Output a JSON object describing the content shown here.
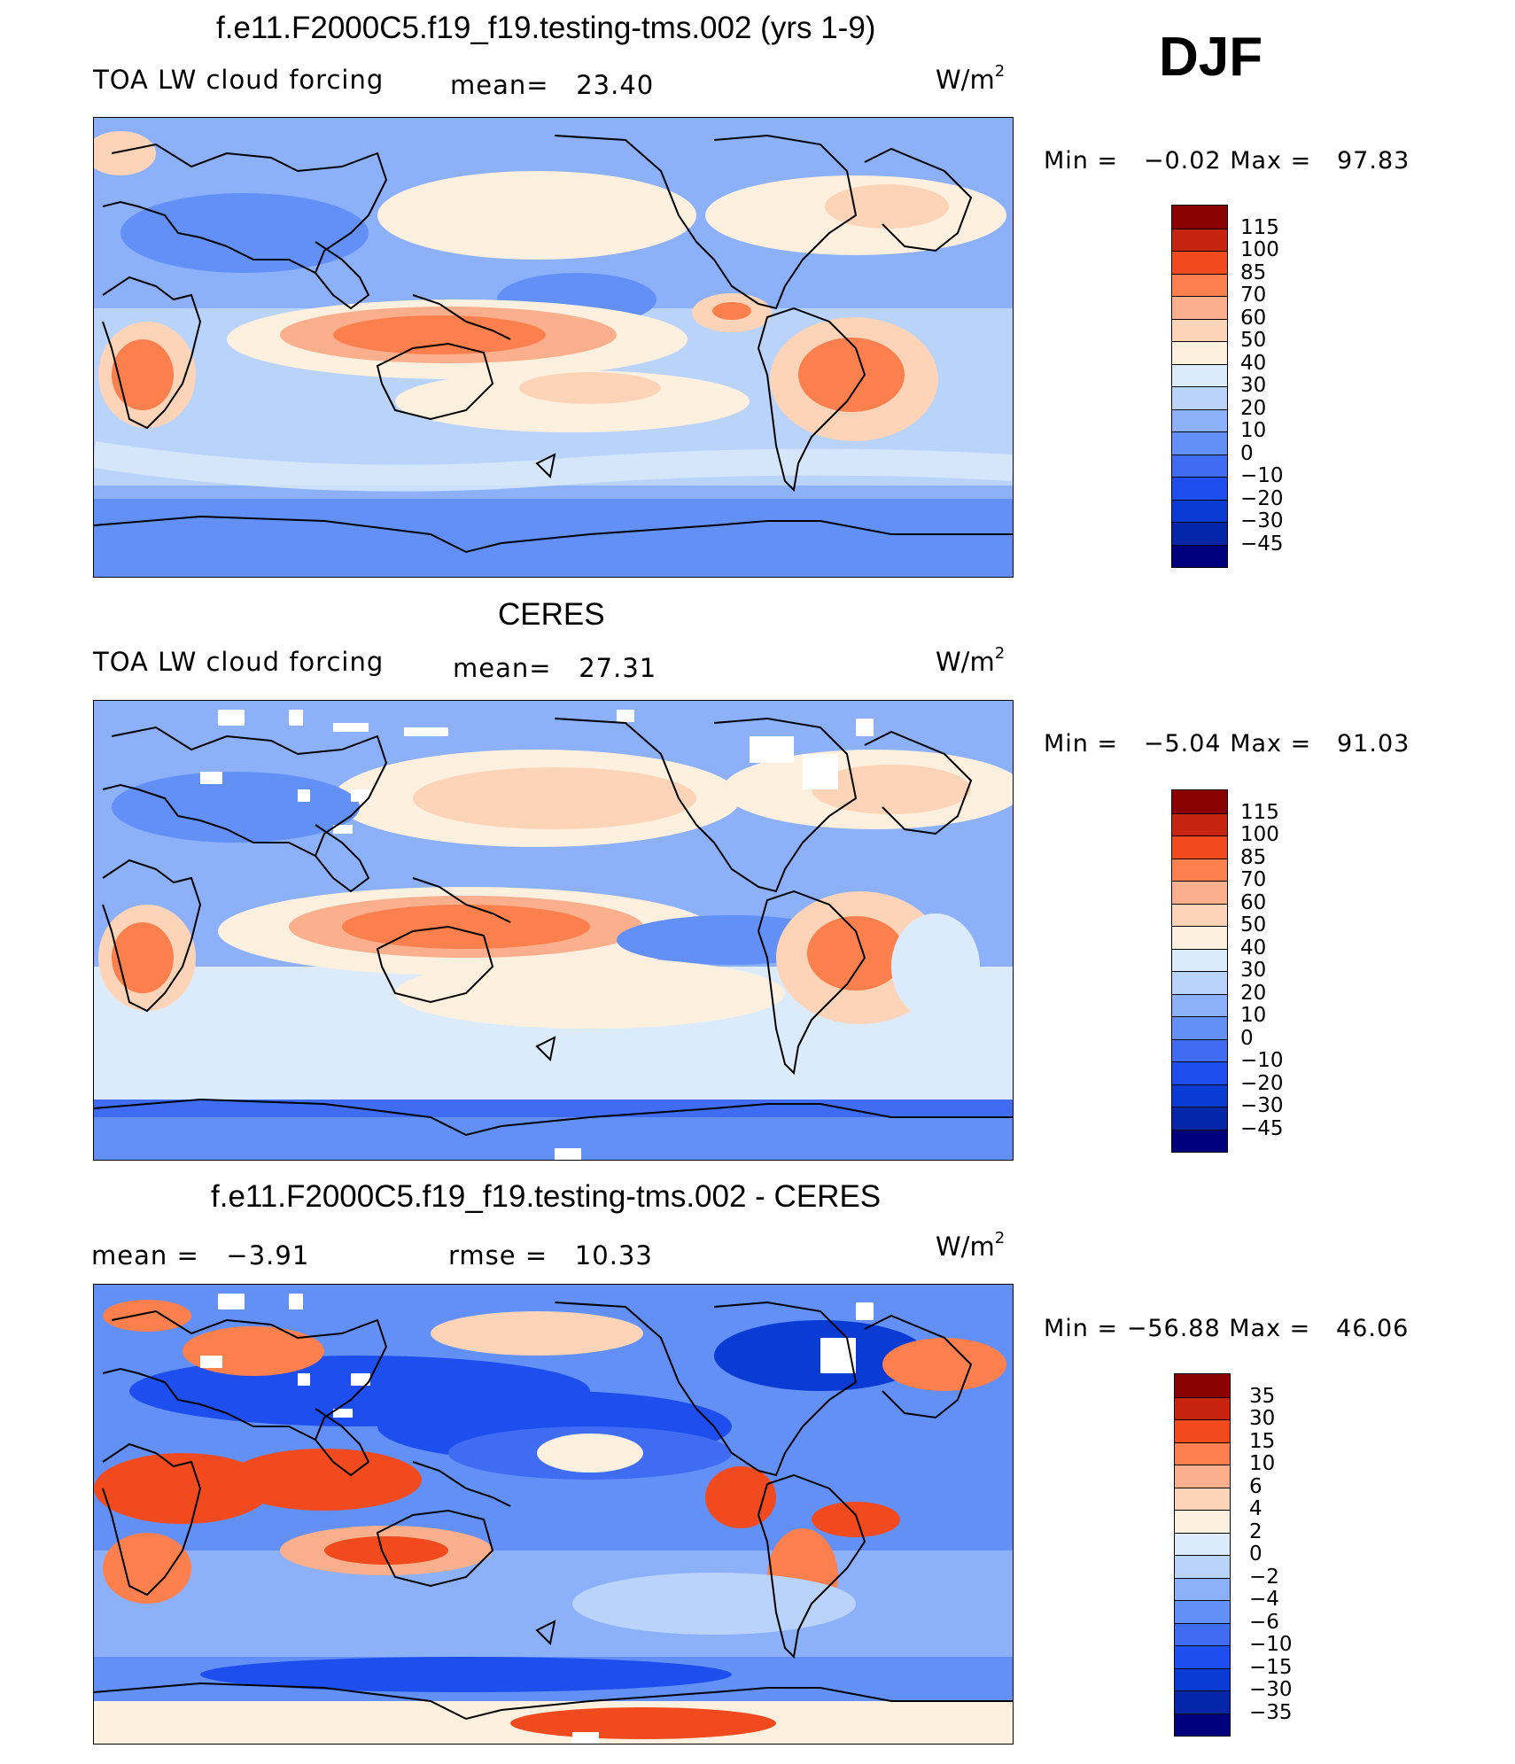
{
  "season": "DJF",
  "units_base": "W/m",
  "units_exp": "2",
  "palettes": {
    "abs": [
      "#00007f",
      "#0626a9",
      "#0a3bd4",
      "#1e4fee",
      "#3f6cf3",
      "#6390f7",
      "#8db0fb",
      "#b9d3fb",
      "#dcebfb",
      "#fdf0df",
      "#fdd4b8",
      "#fcaf8c",
      "#fc7f4e",
      "#f04a1e",
      "#c6240e",
      "#8b0000"
    ],
    "diff": [
      "#00007f",
      "#0626a9",
      "#0a3bd4",
      "#1e4fee",
      "#3f6cf3",
      "#6390f7",
      "#8db0fb",
      "#b9d3fb",
      "#dcebfb",
      "#fdf0df",
      "#fdd4b8",
      "#fcaf8c",
      "#fc7f4e",
      "#f04a1e",
      "#c6240e",
      "#8b0000"
    ]
  },
  "panels": [
    {
      "title": "f.e11.F2000C5.f19_f19.testing-tms.002 (yrs 1-9)",
      "left_label": "TOA LW cloud forcing",
      "stat_label": "mean=",
      "stat_value": "23.40",
      "min_label": "Min =",
      "min_value": "−0.02",
      "max_label": "Max =",
      "max_value": "97.83",
      "colorbar": [
        "115",
        "100",
        "85",
        "70",
        "60",
        "50",
        "40",
        "30",
        "20",
        "10",
        "0",
        "−10",
        "−20",
        "−30",
        "−45"
      ]
    },
    {
      "title": "CERES",
      "left_label": "TOA LW cloud forcing",
      "stat_label": "mean=",
      "stat_value": "27.31",
      "min_label": "Min =",
      "min_value": "−5.04",
      "max_label": "Max =",
      "max_value": "91.03",
      "colorbar": [
        "115",
        "100",
        "85",
        "70",
        "60",
        "50",
        "40",
        "30",
        "20",
        "10",
        "0",
        "−10",
        "−20",
        "−30",
        "−45"
      ]
    },
    {
      "title": "f.e11.F2000C5.f19_f19.testing-tms.002 - CERES",
      "left_label": "mean =",
      "left_value": "−3.91",
      "stat_label": "rmse =",
      "stat_value": "10.33",
      "min_label": "Min =",
      "min_value": "−56.88",
      "max_label": "Max =",
      "max_value": "46.06",
      "colorbar": [
        "35",
        "30",
        "15",
        "10",
        "6",
        "4",
        "2",
        "0",
        "−2",
        "−4",
        "−6",
        "−10",
        "−15",
        "−30",
        "−35"
      ]
    }
  ]
}
